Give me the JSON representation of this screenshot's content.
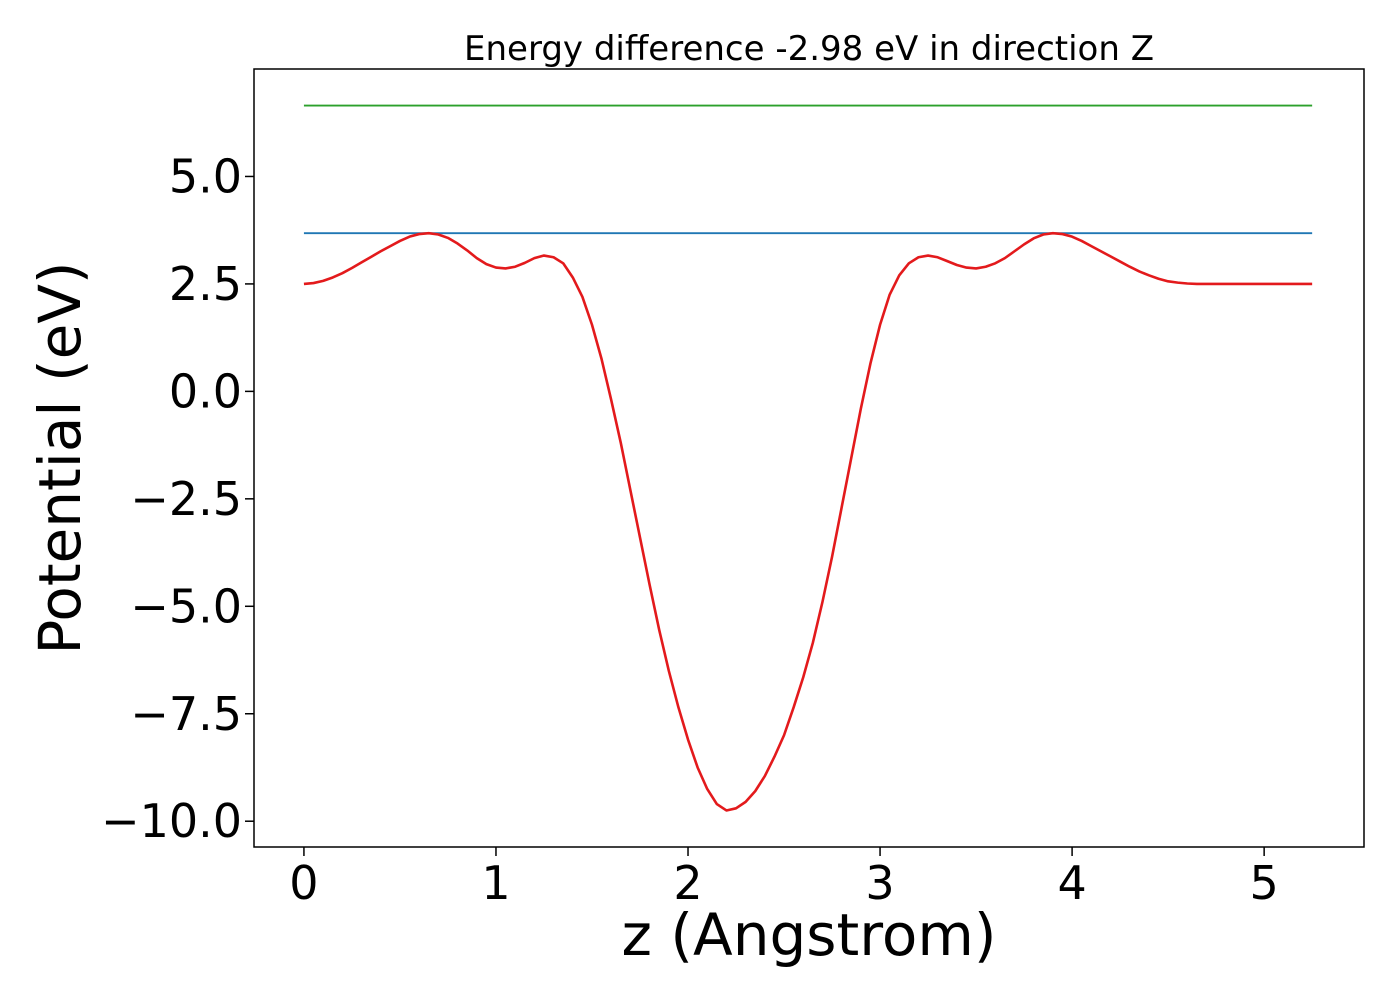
{
  "chart_data": {
    "type": "line",
    "title": "Energy difference -2.98 eV in direction Z",
    "xlabel": "z (Angstrom)",
    "ylabel": "Potential (eV)",
    "xlim": [
      -0.26,
      5.52
    ],
    "ylim": [
      -10.6,
      7.5
    ],
    "xticks": [
      0,
      1,
      2,
      3,
      4,
      5
    ],
    "xtick_labels": [
      "0",
      "1",
      "2",
      "3",
      "4",
      "5"
    ],
    "yticks": [
      5.0,
      2.5,
      0.0,
      -2.5,
      -5.0,
      -7.5,
      -10.0
    ],
    "ytick_labels": [
      "5.0",
      "2.5",
      "0.0",
      "−2.5",
      "−5.0",
      "−7.5",
      "−10.0"
    ],
    "grid": false,
    "series": [
      {
        "color": "#2ca02c",
        "x": [
          0,
          5.25
        ],
        "y": [
          6.65,
          6.65
        ]
      },
      {
        "color": "#1f77b4",
        "x": [
          0,
          5.25
        ],
        "y": [
          3.68,
          3.68
        ]
      },
      {
        "color": "#e31a1c",
        "x": [
          0.0,
          0.05,
          0.1,
          0.15,
          0.2,
          0.25,
          0.3,
          0.35,
          0.4,
          0.45,
          0.5,
          0.55,
          0.6,
          0.65,
          0.7,
          0.75,
          0.8,
          0.85,
          0.9,
          0.95,
          1.0,
          1.05,
          1.1,
          1.15,
          1.2,
          1.25,
          1.3,
          1.35,
          1.4,
          1.45,
          1.5,
          1.55,
          1.6,
          1.65,
          1.7,
          1.75,
          1.8,
          1.85,
          1.9,
          1.95,
          2.0,
          2.05,
          2.1,
          2.15,
          2.2,
          2.25,
          2.3,
          2.35,
          2.4,
          2.45,
          2.5,
          2.55,
          2.6,
          2.65,
          2.7,
          2.75,
          2.8,
          2.85,
          2.9,
          2.95,
          3.0,
          3.05,
          3.1,
          3.15,
          3.2,
          3.25,
          3.3,
          3.35,
          3.4,
          3.45,
          3.5,
          3.55,
          3.6,
          3.65,
          3.7,
          3.75,
          3.8,
          3.85,
          3.9,
          3.95,
          4.0,
          4.05,
          4.1,
          4.15,
          4.2,
          4.25,
          4.3,
          4.35,
          4.4,
          4.45,
          4.5,
          4.55,
          4.6,
          4.65,
          4.7,
          4.75,
          4.8,
          4.85,
          4.9,
          4.95,
          5.0,
          5.05,
          5.1,
          5.15,
          5.2,
          5.25
        ],
        "y": [
          2.5,
          2.52,
          2.57,
          2.65,
          2.75,
          2.87,
          3.0,
          3.13,
          3.26,
          3.38,
          3.5,
          3.6,
          3.66,
          3.68,
          3.65,
          3.57,
          3.44,
          3.28,
          3.1,
          2.96,
          2.88,
          2.86,
          2.9,
          2.99,
          3.1,
          3.16,
          3.12,
          2.98,
          2.65,
          2.2,
          1.55,
          0.75,
          -0.2,
          -1.2,
          -2.3,
          -3.4,
          -4.5,
          -5.55,
          -6.5,
          -7.35,
          -8.1,
          -8.75,
          -9.25,
          -9.6,
          -9.75,
          -9.7,
          -9.55,
          -9.3,
          -8.95,
          -8.5,
          -8.0,
          -7.35,
          -6.65,
          -5.85,
          -4.9,
          -3.85,
          -2.7,
          -1.55,
          -0.4,
          0.65,
          1.55,
          2.25,
          2.7,
          2.98,
          3.12,
          3.16,
          3.12,
          3.03,
          2.94,
          2.88,
          2.86,
          2.9,
          2.98,
          3.1,
          3.26,
          3.42,
          3.56,
          3.65,
          3.68,
          3.66,
          3.6,
          3.5,
          3.38,
          3.26,
          3.14,
          3.02,
          2.9,
          2.79,
          2.7,
          2.62,
          2.56,
          2.53,
          2.51,
          2.5,
          2.5,
          2.5,
          2.5,
          2.5,
          2.5,
          2.5,
          2.5,
          2.5,
          2.5,
          2.5,
          2.5,
          2.5
        ]
      }
    ]
  }
}
